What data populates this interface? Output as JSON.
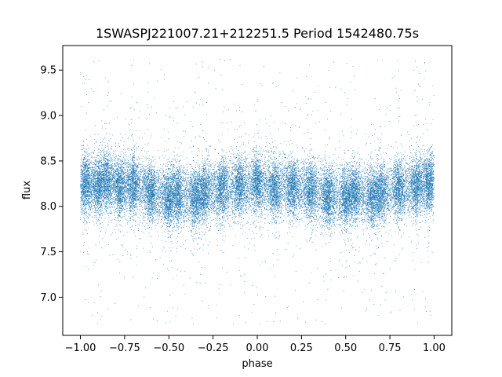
{
  "chart_data": {
    "type": "scatter",
    "title": "1SWASPJ221007.21+212251.5 Period 1542480.75s",
    "xlabel": "phase",
    "ylabel": "flux",
    "xlim": [
      -1.1,
      1.1
    ],
    "ylim": [
      6.58,
      9.77
    ],
    "xticks": [
      -1.0,
      -0.75,
      -0.5,
      -0.25,
      0.0,
      0.25,
      0.5,
      0.75,
      1.0
    ],
    "xtick_labels": [
      "−1.00",
      "−0.75",
      "−0.50",
      "−0.25",
      "0.00",
      "0.25",
      "0.50",
      "0.75",
      "1.00"
    ],
    "yticks": [
      7.0,
      7.5,
      8.0,
      8.5,
      9.0,
      9.5
    ],
    "ytick_labels": [
      "7.0",
      "7.5",
      "8.0",
      "8.5",
      "9.0",
      "9.5"
    ],
    "grid": false,
    "marker_color": "#1f77b4",
    "series": [
      {
        "x_range": [
          -1.0,
          1.0
        ],
        "y_center": 8.2,
        "y_core_range": [
          7.8,
          8.6
        ],
        "y_outlier_range": [
          6.7,
          9.65
        ],
        "approx_points": 30000,
        "columns": [
          {
            "x": -0.97,
            "center": 8.25
          },
          {
            "x": -0.9,
            "center": 8.22
          },
          {
            "x": -0.85,
            "center": 8.3
          },
          {
            "x": -0.78,
            "center": 8.2
          },
          {
            "x": -0.7,
            "center": 8.24
          },
          {
            "x": -0.6,
            "center": 8.15
          },
          {
            "x": -0.5,
            "center": 8.1
          },
          {
            "x": -0.45,
            "center": 8.12
          },
          {
            "x": -0.35,
            "center": 8.1
          },
          {
            "x": -0.3,
            "center": 8.15
          },
          {
            "x": -0.2,
            "center": 8.2
          },
          {
            "x": -0.1,
            "center": 8.22
          },
          {
            "x": 0.0,
            "center": 8.25
          },
          {
            "x": 0.1,
            "center": 8.2
          },
          {
            "x": 0.2,
            "center": 8.2
          },
          {
            "x": 0.3,
            "center": 8.18
          },
          {
            "x": 0.4,
            "center": 8.12
          },
          {
            "x": 0.5,
            "center": 8.1
          },
          {
            "x": 0.55,
            "center": 8.15
          },
          {
            "x": 0.65,
            "center": 8.1
          },
          {
            "x": 0.7,
            "center": 8.15
          },
          {
            "x": 0.8,
            "center": 8.2
          },
          {
            "x": 0.9,
            "center": 8.22
          },
          {
            "x": 0.97,
            "center": 8.25
          }
        ]
      }
    ]
  }
}
